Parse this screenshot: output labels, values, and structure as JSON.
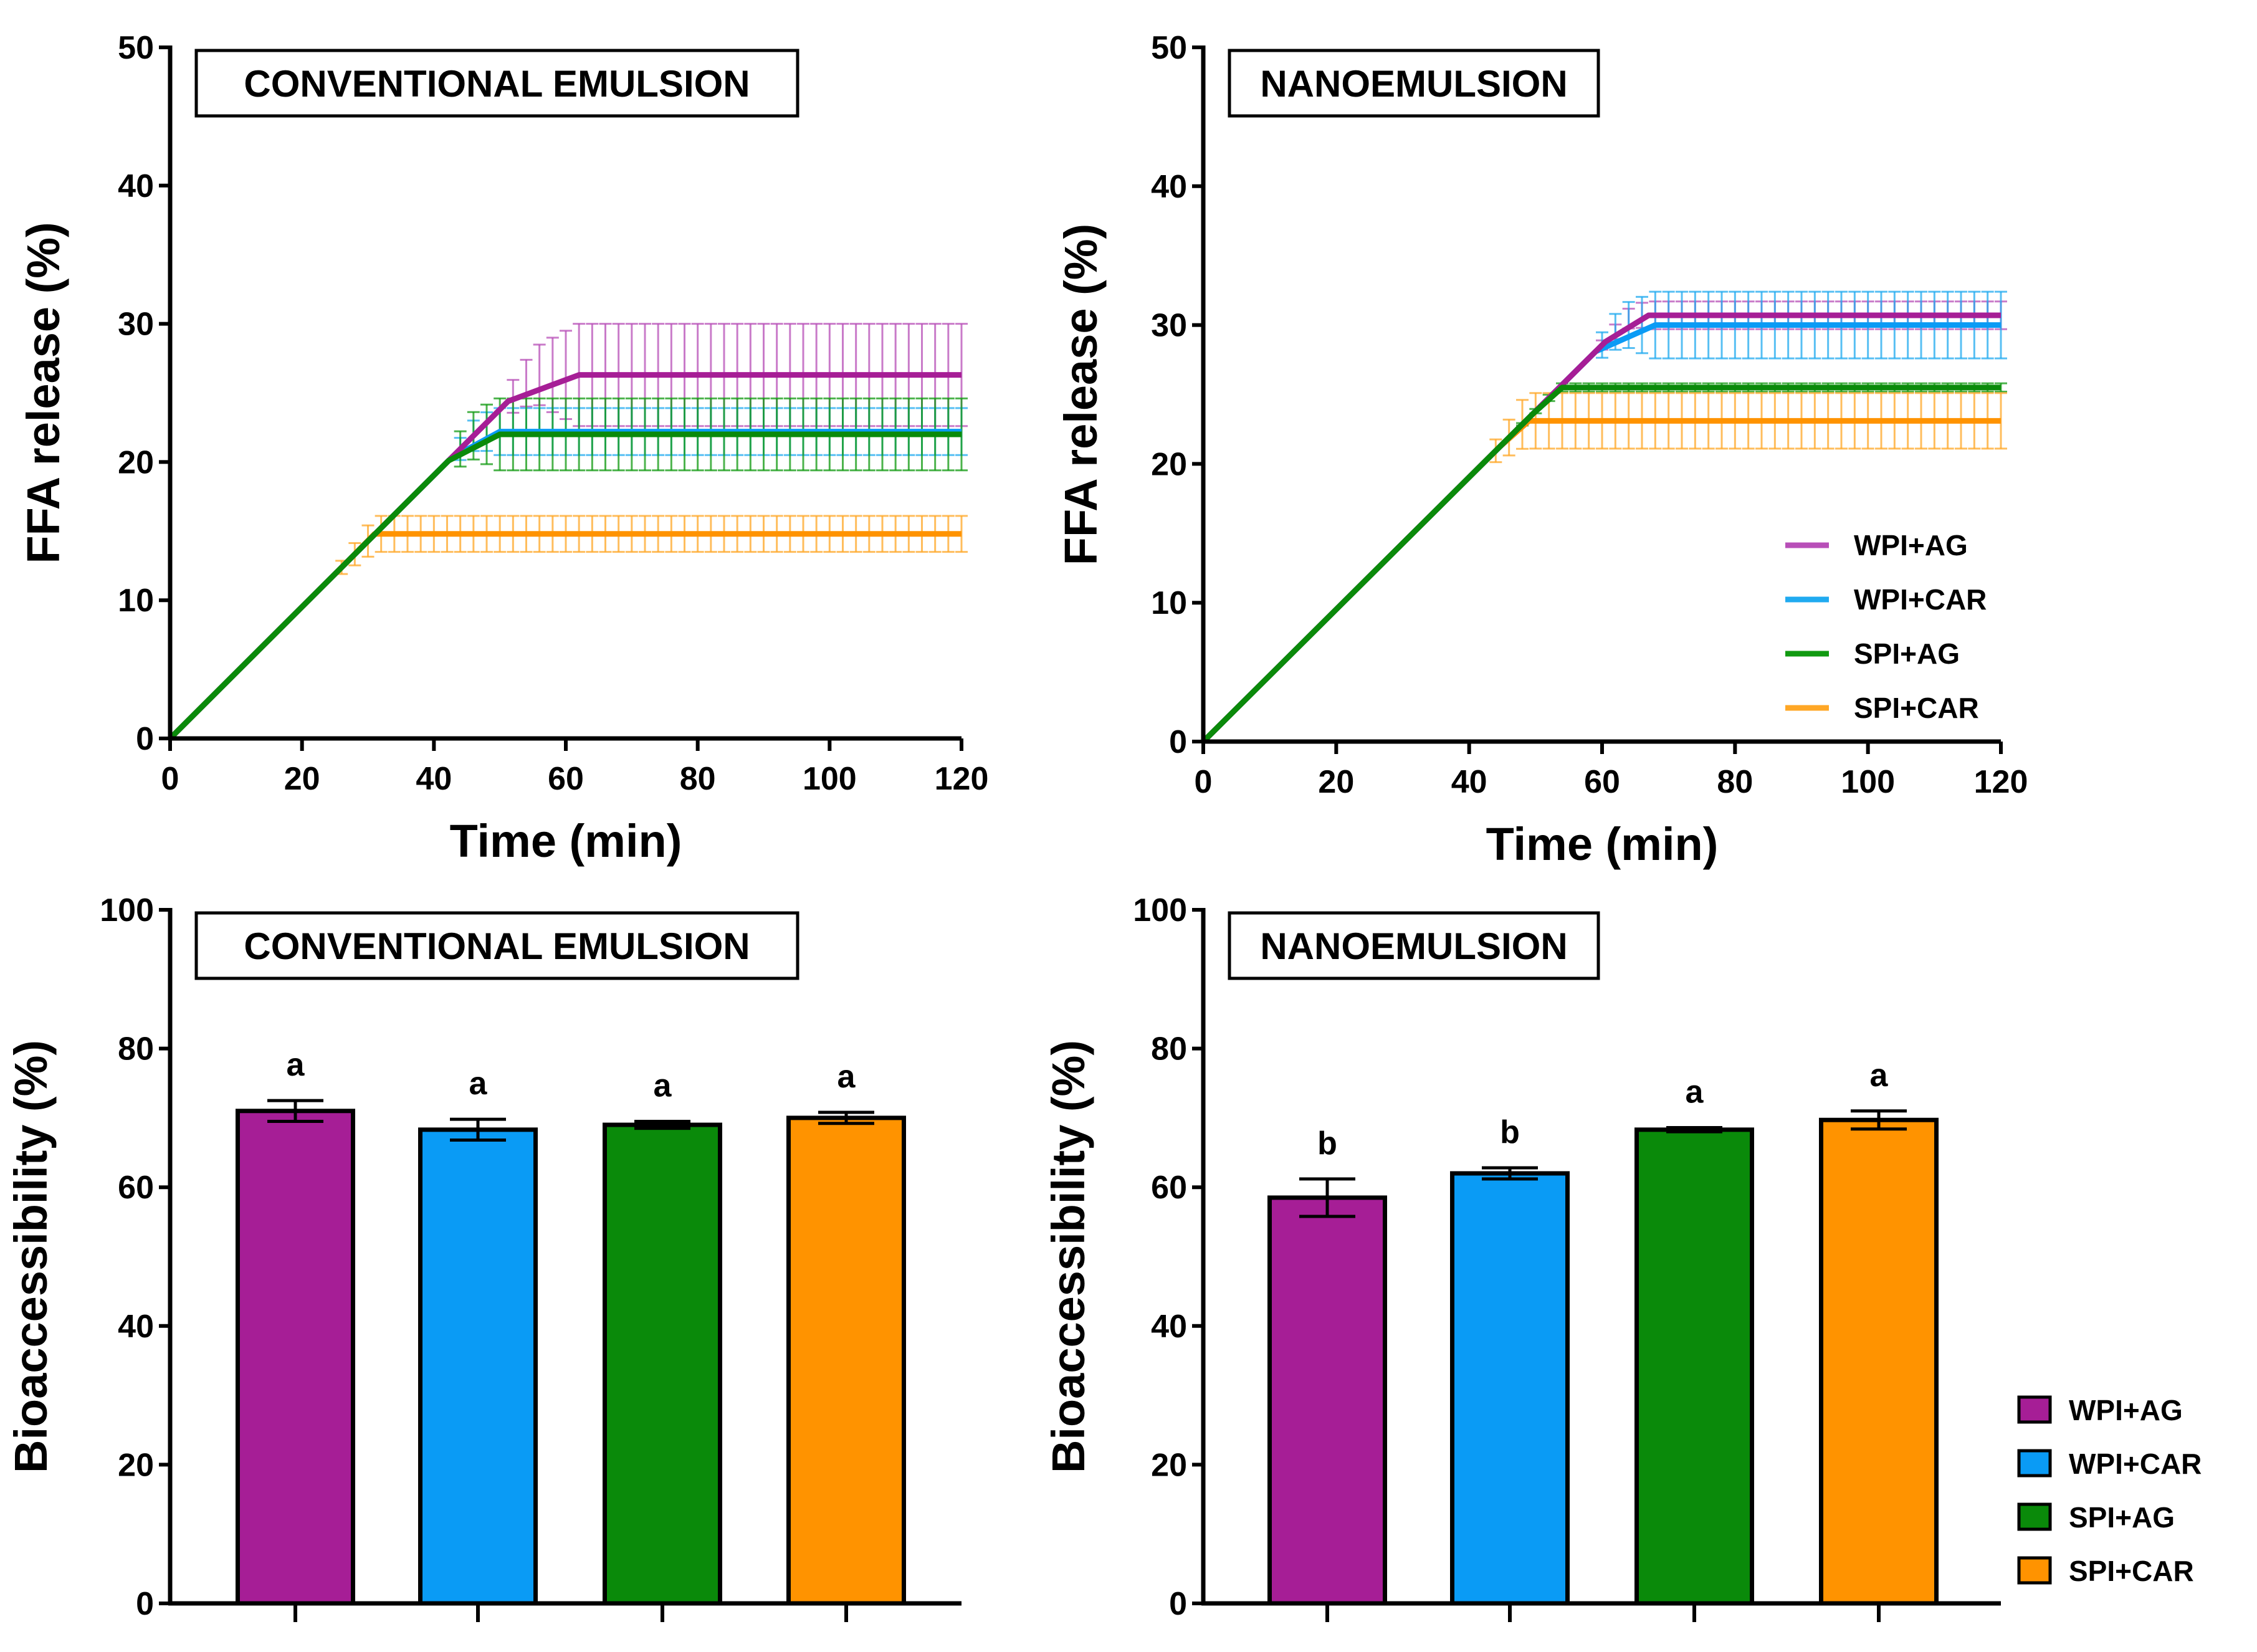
{
  "colors": {
    "WPI+AG": "#a61e96",
    "WPI+CAR": "#0a9bf5",
    "SPI+AG": "#0a8a0a",
    "SPI+CAR": "#ff9300"
  },
  "line_colors": {
    "WPI+AG": "#b84fb8",
    "WPI+CAR": "#20aaf0",
    "SPI+AG": "#119a11",
    "SPI+CAR": "#ffa726"
  },
  "chart_data": [
    {
      "type": "line",
      "title": "CONVENTIONAL EMULSION",
      "xlabel": "Time (min)",
      "ylabel": "FFA release (%)",
      "xlim": [
        0,
        120
      ],
      "ylim": [
        0,
        50
      ],
      "xticks": [
        "0",
        "20",
        "40",
        "60",
        "80",
        "100",
        "120"
      ],
      "yticks": [
        "0",
        "10",
        "20",
        "30",
        "40",
        "50"
      ],
      "slope_percent_per_min": 0.476,
      "series": [
        {
          "name": "WPI+AG",
          "plateau_start_min": 62,
          "plateau": 26.3,
          "sd": 3.7
        },
        {
          "name": "WPI+CAR",
          "plateau_start_min": 50,
          "plateau": 22.2,
          "sd": 1.7
        },
        {
          "name": "SPI+AG",
          "plateau_start_min": 50,
          "plateau": 22.0,
          "sd": 2.6
        },
        {
          "name": "SPI+CAR",
          "plateau_start_min": 31,
          "plateau": 14.8,
          "sd": 1.3
        }
      ]
    },
    {
      "type": "line",
      "title": "NANOEMULSION",
      "xlabel": "Time (min)",
      "ylabel": "FFA release (%)",
      "xlim": [
        0,
        120
      ],
      "ylim": [
        0,
        50
      ],
      "xticks": [
        "0",
        "20",
        "40",
        "60",
        "80",
        "100",
        "120"
      ],
      "yticks": [
        "0",
        "10",
        "20",
        "30",
        "40",
        "50"
      ],
      "slope_percent_per_min": 0.476,
      "legend": [
        "WPI+AG",
        "WPI+CAR",
        "SPI+AG",
        "SPI+CAR"
      ],
      "legend_position": "lower-right",
      "series": [
        {
          "name": "WPI+AG",
          "plateau_start_min": 67,
          "plateau": 30.7,
          "sd": 1.0
        },
        {
          "name": "WPI+CAR",
          "plateau_start_min": 68,
          "plateau": 30.0,
          "sd": 2.4
        },
        {
          "name": "SPI+AG",
          "plateau_start_min": 54,
          "plateau": 25.5,
          "sd": 0.3
        },
        {
          "name": "SPI+CAR",
          "plateau_start_min": 49,
          "plateau": 23.1,
          "sd": 2.0
        }
      ]
    },
    {
      "type": "bar",
      "title": "CONVENTIONAL EMULSION",
      "ylabel": "Bioaccessibility (%)",
      "ylim": [
        0,
        100
      ],
      "yticks": [
        "0",
        "20",
        "40",
        "60",
        "80",
        "100"
      ],
      "categories": [
        "WPI+AG",
        "WPI+CAR",
        "SPI+AG",
        "SPI+CAR"
      ],
      "values": [
        71.0,
        68.3,
        69.0,
        70.0
      ],
      "errors": [
        1.5,
        1.5,
        0.5,
        0.8
      ],
      "letters": [
        "a",
        "a",
        "a",
        "a"
      ]
    },
    {
      "type": "bar",
      "title": "NANOEMULSION",
      "ylabel": "Bioaccessibility (%)",
      "ylim": [
        0,
        100
      ],
      "yticks": [
        "0",
        "20",
        "40",
        "60",
        "80",
        "100"
      ],
      "categories": [
        "WPI+AG",
        "WPI+CAR",
        "SPI+AG",
        "SPI+CAR"
      ],
      "values": [
        58.5,
        62.0,
        68.3,
        69.7
      ],
      "errors": [
        2.7,
        0.8,
        0.3,
        1.3
      ],
      "letters": [
        "b",
        "b",
        "a",
        "a"
      ],
      "legend": [
        "WPI+AG",
        "WPI+CAR",
        "SPI+AG",
        "SPI+CAR"
      ],
      "legend_position": "lower-right"
    }
  ]
}
